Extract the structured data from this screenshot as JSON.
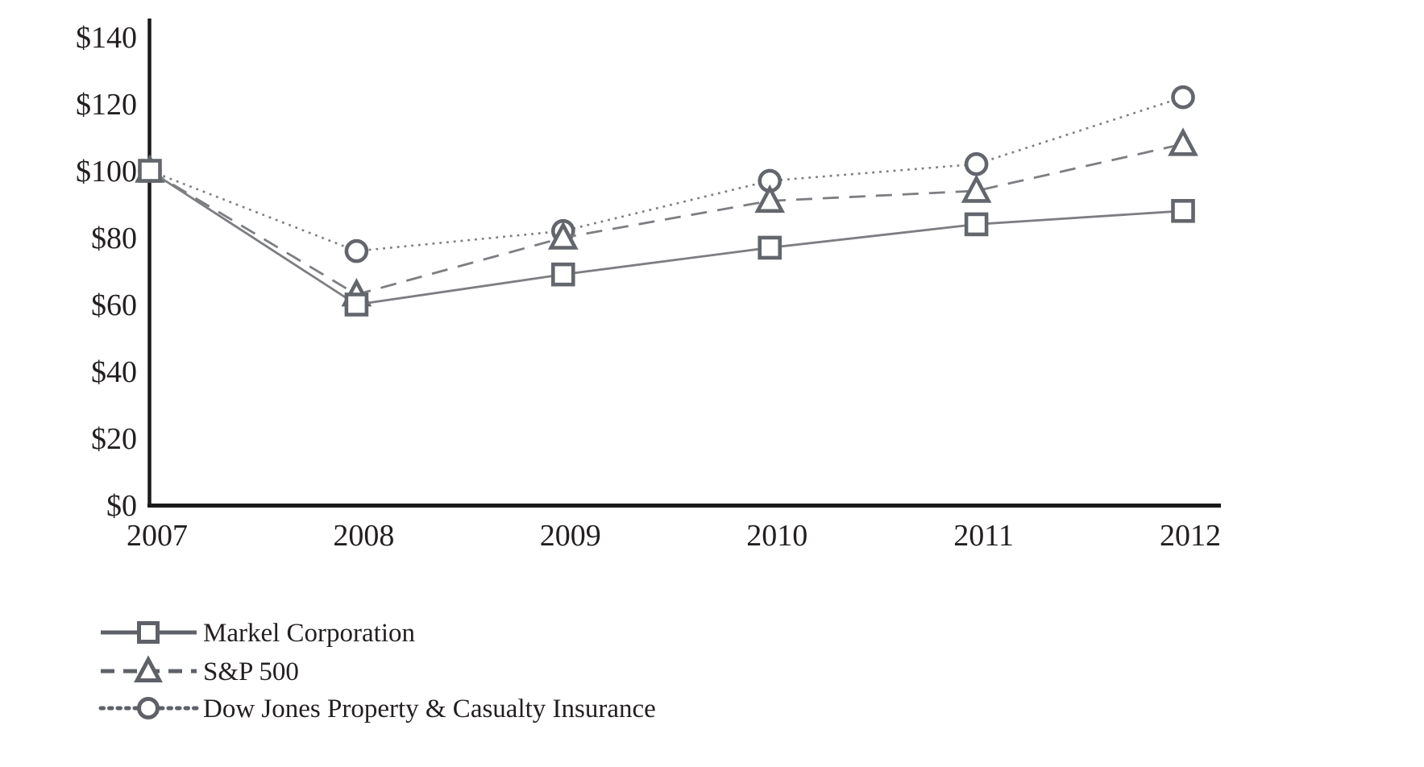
{
  "figure": {
    "description": "Total return performance line chart comparing an initial $100 investment, 2007-2012",
    "background_color": "#ffffff"
  },
  "colors": {
    "axis": "#1a1a1a",
    "text": "#231f20",
    "series_line": "#7d7e82",
    "marker_stroke": "#63666c",
    "marker_fill": "#ffffff",
    "legend_swatch": "#5e6167"
  },
  "chart_data": {
    "type": "line",
    "title": "",
    "xlabel": "",
    "ylabel": "",
    "x_labels": [
      "2007",
      "2008",
      "2009",
      "2010",
      "2011",
      "2012"
    ],
    "y_tick_labels": [
      "$0",
      "$20",
      "$40",
      "$60",
      "$80",
      "$100",
      "$120",
      "$140"
    ],
    "y_tick_values": [
      0,
      20,
      40,
      60,
      80,
      100,
      120,
      140
    ],
    "ylim": [
      0,
      140
    ],
    "grid": false,
    "legend_position": "bottom-left",
    "series": [
      {
        "name": "Markel Corporation",
        "marker": "square",
        "line_style": "solid",
        "values": [
          100,
          60,
          69,
          77,
          84,
          88
        ]
      },
      {
        "name": "S&P 500",
        "marker": "triangle",
        "line_style": "dashed",
        "values": [
          100,
          63,
          80,
          91,
          94,
          108
        ]
      },
      {
        "name": "Dow Jones Property & Casualty Insurance",
        "marker": "circle",
        "line_style": "dotted",
        "values": [
          100,
          76,
          82,
          97,
          102,
          122
        ]
      }
    ]
  }
}
